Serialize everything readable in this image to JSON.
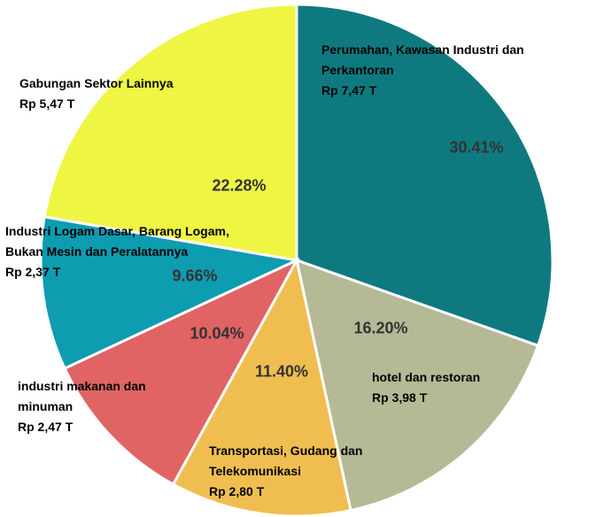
{
  "chart_data": {
    "type": "pie",
    "categories": [
      "Perumahan, Kawasan Industri dan Perkantoran",
      "hotel dan restoran",
      "Transportasi, Gudang dan Telekomunikasi",
      "industri makanan dan minuman",
      "Industri Logam Dasar, Barang Logam, Bukan Mesin dan Peralatannya",
      "Gabungan Sektor Lainnya"
    ],
    "amounts": [
      "Rp 7,47 T",
      "Rp 3,98 T",
      "Rp 2,80 T",
      "Rp 2,47 T",
      "Rp 2,37 T",
      "Rp 5,47 T"
    ],
    "values": [
      30.41,
      16.2,
      11.4,
      10.04,
      9.66,
      22.28
    ],
    "value_labels": [
      "30.41%",
      "16.20%",
      "11.40%",
      "10.04%",
      "9.66%",
      "22.28%"
    ],
    "colors": [
      "#0e7a80",
      "#b5b995",
      "#f0be50",
      "#e06464",
      "#0e9cb0",
      "#eef542"
    ]
  }
}
